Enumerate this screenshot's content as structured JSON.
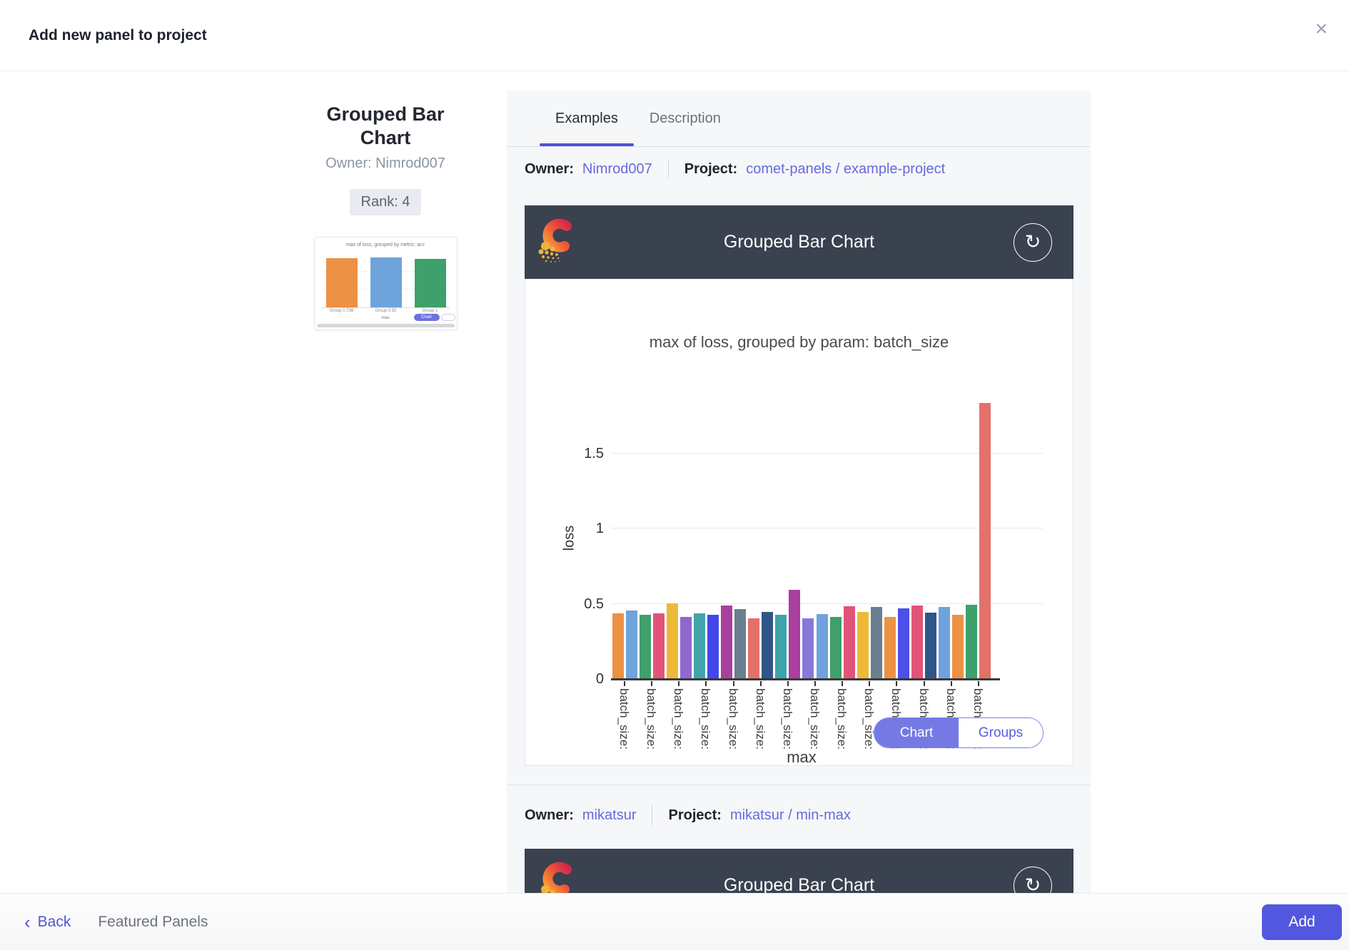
{
  "header": {
    "title": "Add new panel to project"
  },
  "icons": {
    "close": "×",
    "back_chevron": "‹",
    "refresh": "↻"
  },
  "panel_info": {
    "title": "Grouped Bar Chart",
    "owner": "Owner: Nimrod007",
    "rank": "Rank: 4"
  },
  "tabs": {
    "examples": "Examples",
    "description": "Description"
  },
  "examples": [
    {
      "owner_label": "Owner:",
      "owner_name": "Nimrod007",
      "project_label": "Project:",
      "project_name": "comet-panels / example-project",
      "panel_title": "Grouped Bar Chart"
    },
    {
      "owner_label": "Owner:",
      "owner_name": "mikatsur",
      "project_label": "Project:",
      "project_name": "mikatsur / min-max",
      "panel_title": "Grouped Bar Chart"
    }
  ],
  "toggle": {
    "chart": "Chart",
    "groups": "Groups"
  },
  "footer": {
    "back": "Back",
    "context": "Featured Panels",
    "add": "Add"
  },
  "colors": {
    "accent": "#5257e0",
    "link": "#666add",
    "header_dark": "#3a414f",
    "panel_bg": "#f6f7f9",
    "tab_underline": "#4d52d4"
  },
  "chart_data": [
    {
      "type": "bar",
      "title": "max of loss, grouped by param: batch_size",
      "ylabel": "loss",
      "xlabel": "max",
      "yticks": [
        0,
        0.5,
        1,
        1.5
      ],
      "ylim": [
        0,
        1.9
      ],
      "grid": true,
      "categories": [
        "batch_size:",
        "batch_size:",
        "batch_size:",
        "batch_size:",
        "batch_size:",
        "batch_size:",
        "batch_size:",
        "batch_size:",
        "batch_size:",
        "batch_size:",
        "batch_size:",
        "batch_size:",
        "batch_size:",
        "batch_size:"
      ],
      "values": [
        0.43,
        0.45,
        0.42,
        0.43,
        0.5,
        0.41,
        0.43,
        0.42,
        0.485,
        0.46,
        0.4,
        0.44,
        0.42,
        0.59,
        0.4,
        0.425,
        0.41,
        0.48,
        0.44,
        0.475,
        0.41,
        0.465,
        0.485,
        0.435,
        0.475,
        0.42,
        0.49,
        1.83
      ],
      "colors": [
        "#ED9144",
        "#6FA3DB",
        "#3EA06A",
        "#E25379",
        "#ECBA37",
        "#8F67CE",
        "#42A4AC",
        "#4347EA",
        "#A93F9E",
        "#6A7E8F",
        "#E3716A",
        "#305589",
        "#3DA3AC",
        "#A93F9E",
        "#8878D8",
        "#6FA3DB",
        "#3EA06A",
        "#E25379",
        "#ECBA37",
        "#6A7E8F",
        "#ED9144",
        "#4C50E8",
        "#E25379",
        "#305589",
        "#6FA3DB",
        "#ED9144",
        "#3EA06A",
        "#E3716A"
      ]
    },
    {
      "type": "bar",
      "title": "max of loss, grouped by metric: acc",
      "xlabel": "max",
      "categories": [
        "Group 0.738",
        "Group 0.92",
        "Group 1"
      ],
      "values": [
        0.9,
        0.92,
        0.89
      ],
      "colors": [
        "#ED9144",
        "#6FA3DB",
        "#3EA06A"
      ],
      "button": "Chart"
    }
  ]
}
